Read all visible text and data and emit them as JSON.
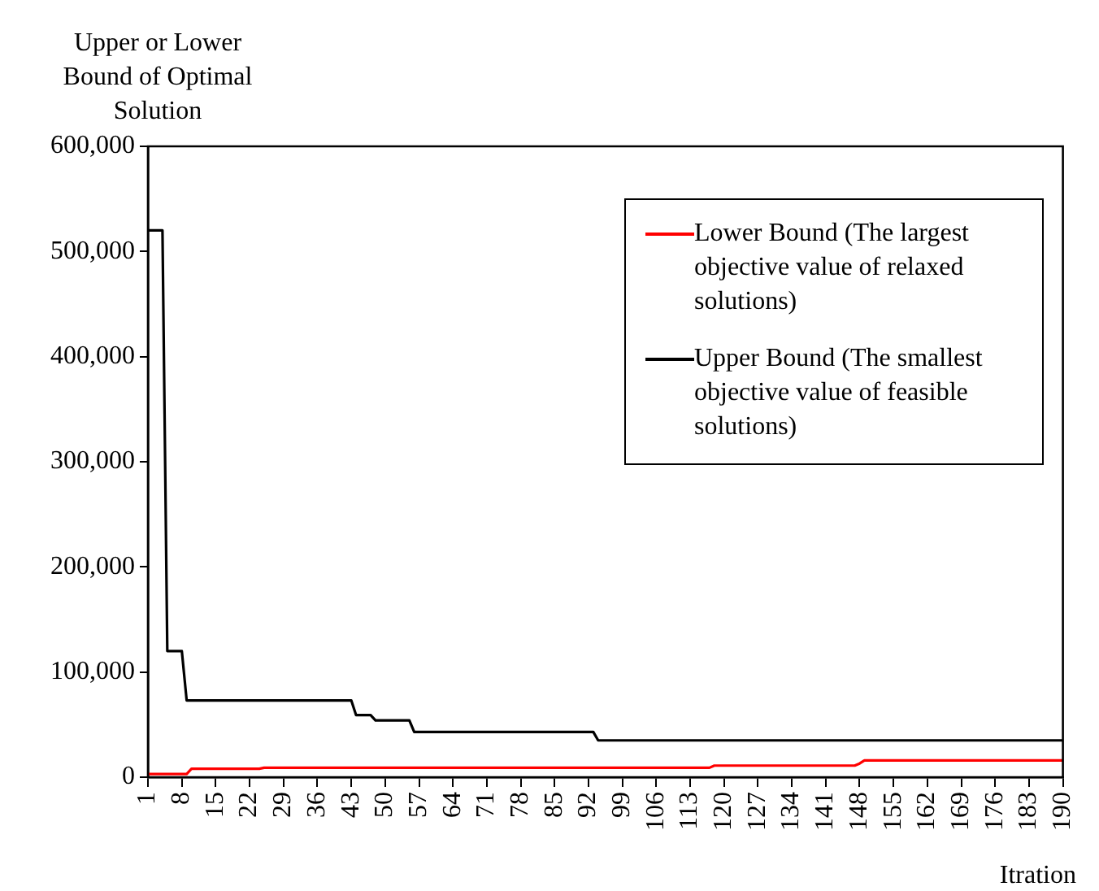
{
  "chart_data": {
    "type": "line",
    "ylabel": "Upper or Lower Bound of Optimal Solution",
    "xlabel": "Itration",
    "series": [
      {
        "name": "Lower Bound (The largest objective value of relaxed solutions)",
        "color": "#ff0000",
        "x": [
          1,
          9,
          10,
          24,
          25,
          117,
          118,
          147,
          148,
          149,
          190
        ],
        "values": [
          3000,
          3000,
          8000,
          8000,
          9000,
          9000,
          11000,
          11000,
          13000,
          16000,
          16000
        ]
      },
      {
        "name": "Upper Bound (The smallest objective value of feasible solutions)",
        "color": "#000000",
        "x": [
          1,
          4,
          5,
          8,
          9,
          43,
          44,
          47,
          48,
          55,
          56,
          93,
          94,
          190
        ],
        "values": [
          520000,
          520000,
          120000,
          120000,
          73000,
          73000,
          59000,
          59000,
          54000,
          54000,
          43000,
          43000,
          35000,
          35000
        ]
      }
    ],
    "xlim": [
      1,
      190
    ],
    "xticks": [
      1,
      8,
      15,
      22,
      29,
      36,
      43,
      50,
      57,
      64,
      71,
      78,
      85,
      92,
      99,
      106,
      113,
      120,
      127,
      134,
      141,
      148,
      155,
      162,
      169,
      176,
      183,
      190
    ],
    "ylim": [
      0,
      600000
    ],
    "yticks": [
      0,
      {
        "value": 100000,
        "label": "100,000"
      },
      {
        "value": 200000,
        "label": "200,000"
      },
      {
        "value": 300000,
        "label": "300,000"
      },
      {
        "value": 400000,
        "label": "400,000"
      },
      {
        "value": 500000,
        "label": "500,000"
      },
      {
        "value": 600000,
        "label": "600,000"
      }
    ],
    "grid": false,
    "legend": "top right",
    "marker": "none",
    "line_style": "solid"
  }
}
